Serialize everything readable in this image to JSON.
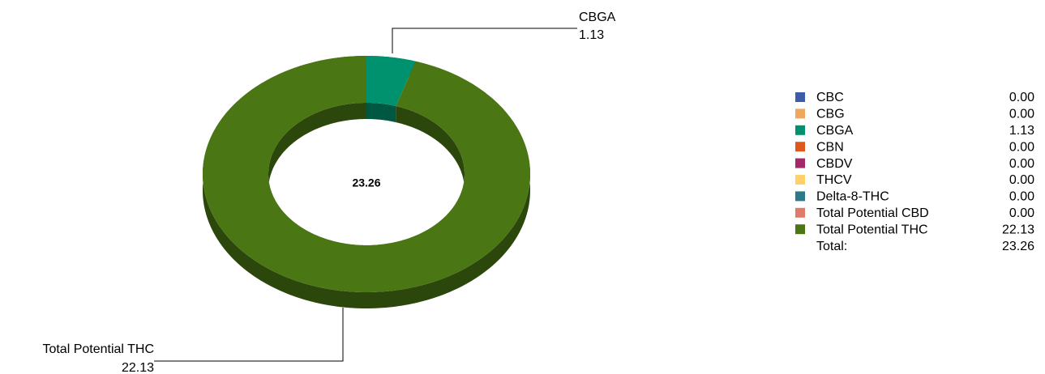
{
  "chart_data": {
    "type": "donut",
    "categories": [
      "CBC",
      "CBG",
      "CBGA",
      "CBN",
      "CBDV",
      "THCV",
      "Delta-8-THC",
      "Total Potential CBD",
      "Total Potential THC"
    ],
    "values": [
      0,
      0,
      1.13,
      0,
      0,
      0,
      0,
      0,
      22.13
    ],
    "value_labels": [
      "0.00",
      "0.00",
      "1.13",
      "0.00",
      "0.00",
      "0.00",
      "0.00",
      "0.00",
      "22.13"
    ],
    "colors": [
      "#3d5ca8",
      "#f0a65b",
      "#00916e",
      "#e0571c",
      "#a3296b",
      "#ffd166",
      "#2b7a8c",
      "#e07b6b",
      "#4a7714"
    ],
    "total_label": "Total:",
    "total": 23.26,
    "legend": "right"
  }
}
